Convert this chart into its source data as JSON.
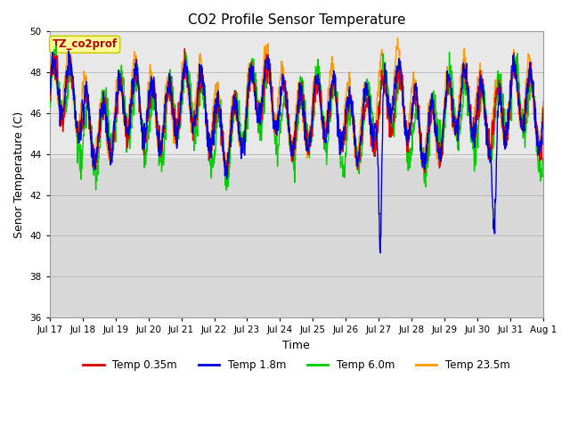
{
  "title": "CO2 Profile Sensor Temperature",
  "ylabel": "Senor Temperature (C)",
  "xlabel": "Time",
  "annotation_text": "TZ_co2prof",
  "annotation_color": "#bb0000",
  "annotation_bg": "#ffff99",
  "annotation_edge": "#cccc00",
  "ylim": [
    36,
    50
  ],
  "yticks": [
    36,
    38,
    40,
    42,
    44,
    46,
    48,
    50
  ],
  "x_tick_labels": [
    "Jul 17",
    "Jul 18",
    "Jul 19",
    "Jul 20",
    "Jul 21",
    "Jul 22",
    "Jul 23",
    "Jul 24",
    "Jul 25",
    "Jul 26",
    "Jul 27",
    "Jul 28",
    "Jul 29",
    "Jul 30",
    "Jul 31",
    "Aug 1"
  ],
  "series": [
    {
      "label": "Temp 0.35m",
      "color": "#dd0000"
    },
    {
      "label": "Temp 1.8m",
      "color": "#0000dd"
    },
    {
      "label": "Temp 6.0m",
      "color": "#00cc00"
    },
    {
      "label": "Temp 23.5m",
      "color": "#ff9900"
    }
  ],
  "grid_color": "#bbbbbb",
  "plot_area_bg": "#d8d8d8",
  "upper_band_bg": "#e8e8e8",
  "fig_bg": "#ffffff",
  "seed": 12345,
  "n_points": 1500
}
